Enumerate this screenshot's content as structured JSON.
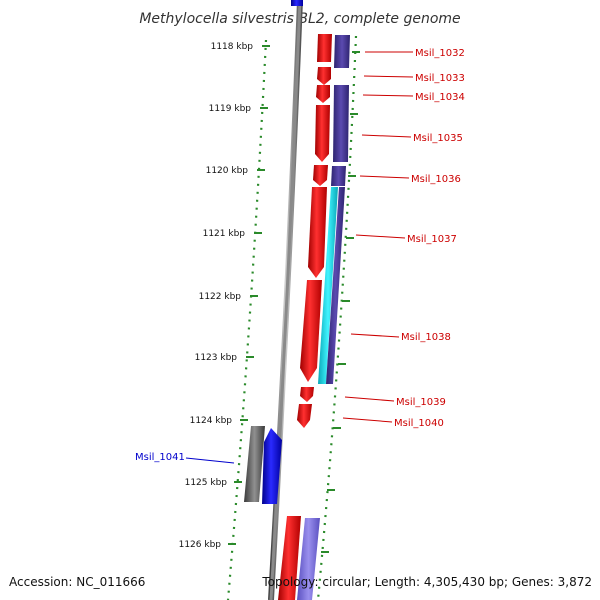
{
  "title": "Methylocella silvestris BL2, complete genome",
  "footer": {
    "accession": "Accession: NC_011666",
    "summary": "Topology: circular; Length: 4,305,430 bp; Genes: 3,872"
  },
  "ruler": [
    "1118 kbp",
    "1119 kbp",
    "1120 kbp",
    "1121 kbp",
    "1122 kbp",
    "1123 kbp",
    "1124 kbp",
    "1125 kbp",
    "1126 kbp"
  ],
  "genes": [
    {
      "name": "Msil_1032",
      "strand": "plus"
    },
    {
      "name": "Msil_1033",
      "strand": "plus"
    },
    {
      "name": "Msil_1034",
      "strand": "plus"
    },
    {
      "name": "Msil_1035",
      "strand": "plus"
    },
    {
      "name": "Msil_1036",
      "strand": "plus"
    },
    {
      "name": "Msil_1037",
      "strand": "plus"
    },
    {
      "name": "Msil_1038",
      "strand": "plus"
    },
    {
      "name": "Msil_1039",
      "strand": "plus"
    },
    {
      "name": "Msil_1040",
      "strand": "plus"
    },
    {
      "name": "Msil_1041",
      "strand": "minus"
    }
  ],
  "colors": {
    "plus_gene": "#ff1010",
    "minus_gene": "#1010ee",
    "cds_feature": "#4a3c96",
    "highlight_feature": "#18e4f0",
    "other_feature": "#707070",
    "backbone": "#888888",
    "tick": "#2a8a2a",
    "plus_label": "#cc0000",
    "minus_label": "#0000cc"
  }
}
